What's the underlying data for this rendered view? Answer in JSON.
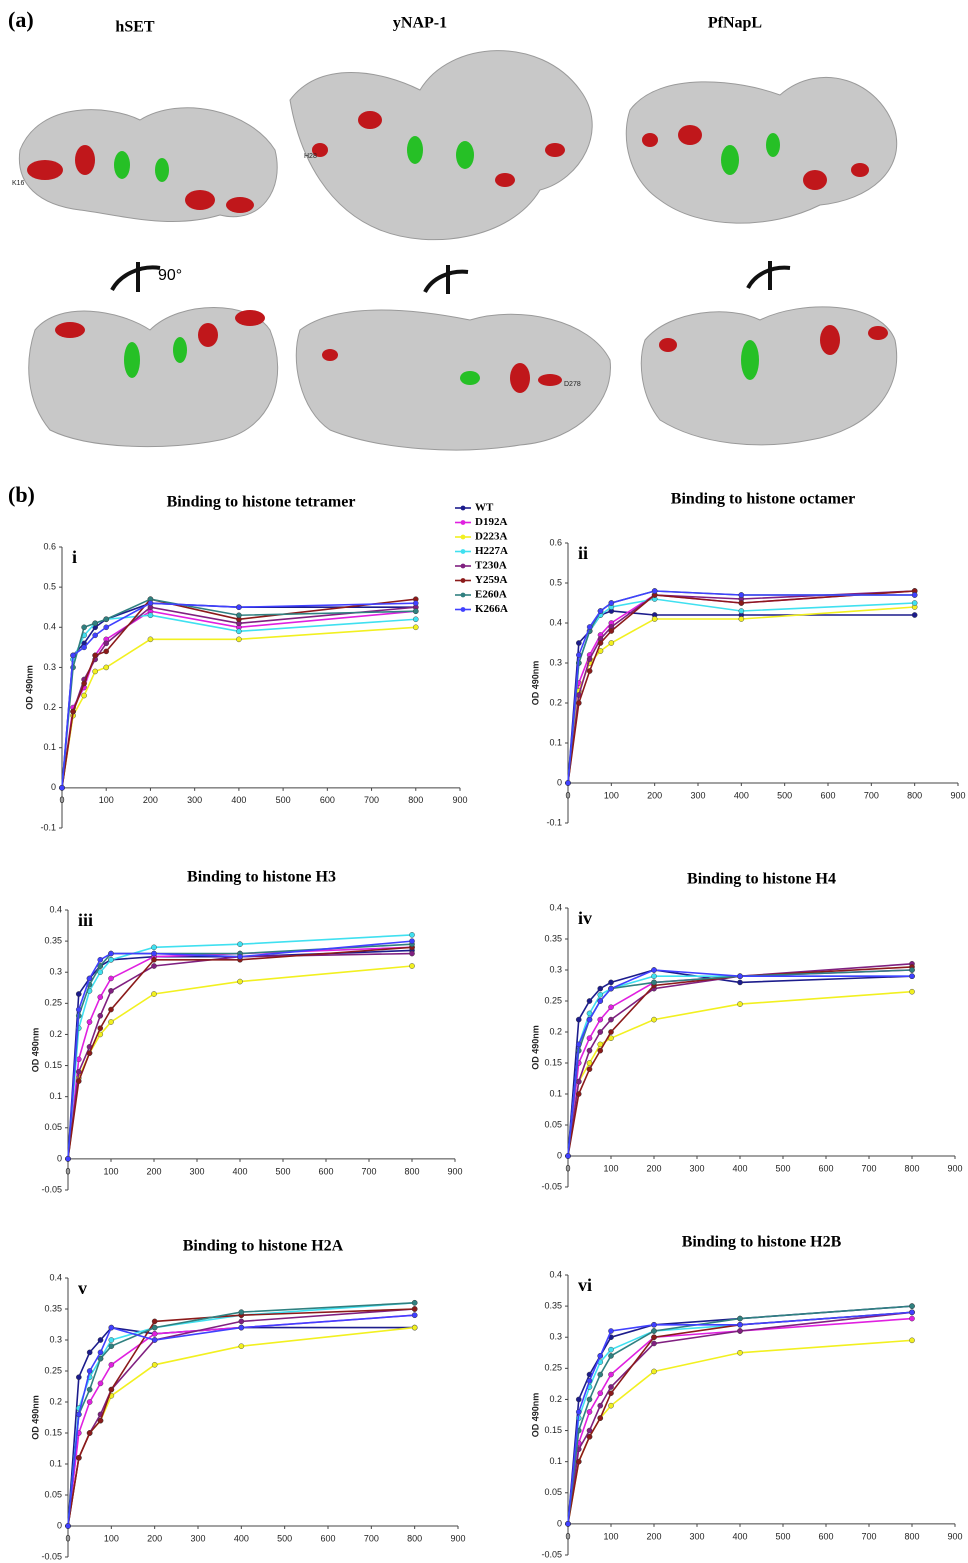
{
  "panel_a": {
    "label": "(a)",
    "proteins": [
      "hSET",
      "yNAP-1",
      "PfNapL"
    ],
    "rotation": "90°",
    "residue_labels": [
      "K16",
      "H28",
      "D278"
    ]
  },
  "panel_b_label": "(b)",
  "chart_data": [
    {
      "type": "line",
      "title": "Binding to histone tetramer",
      "panel": "i",
      "y_label": "OD 490nm",
      "legend": true,
      "x": [
        0,
        25,
        50,
        75,
        100,
        200,
        400,
        800
      ],
      "xlim": [
        0,
        900
      ],
      "xticks": [
        0,
        100,
        200,
        300,
        400,
        500,
        600,
        700,
        800,
        900
      ],
      "ylim": [
        -0.1,
        0.6
      ],
      "yticks": [
        -0.1,
        0,
        0.1,
        0.2,
        0.3,
        0.4,
        0.5,
        0.6
      ],
      "series": [
        {
          "name": "WT",
          "color": "#1c1c8c",
          "values": [
            0,
            0.33,
            0.36,
            0.4,
            0.42,
            0.46,
            0.45,
            0.45
          ]
        },
        {
          "name": "D192A",
          "color": "#e020e0",
          "values": [
            0,
            0.2,
            0.25,
            0.33,
            0.37,
            0.44,
            0.4,
            0.44
          ]
        },
        {
          "name": "D223A",
          "color": "#f2f020",
          "values": [
            0,
            0.18,
            0.23,
            0.29,
            0.3,
            0.37,
            0.37,
            0.4
          ]
        },
        {
          "name": "H227A",
          "color": "#40e0f0",
          "values": [
            0,
            0.32,
            0.38,
            0.41,
            0.42,
            0.43,
            0.39,
            0.42
          ]
        },
        {
          "name": "T230A",
          "color": "#802080",
          "values": [
            0,
            0.19,
            0.27,
            0.32,
            0.36,
            0.45,
            0.41,
            0.45
          ]
        },
        {
          "name": "Y259A",
          "color": "#8b1a1a",
          "values": [
            0,
            0.19,
            0.26,
            0.33,
            0.34,
            0.47,
            0.42,
            0.47
          ]
        },
        {
          "name": "E260A",
          "color": "#308080",
          "values": [
            0,
            0.3,
            0.4,
            0.41,
            0.42,
            0.47,
            0.43,
            0.44
          ]
        },
        {
          "name": "K266A",
          "color": "#4040ff",
          "values": [
            0,
            0.33,
            0.35,
            0.38,
            0.4,
            0.46,
            0.45,
            0.46
          ]
        }
      ]
    },
    {
      "type": "line",
      "title": "Binding to histone octamer",
      "panel": "ii",
      "y_label": "OD 490nm",
      "legend": false,
      "x": [
        0,
        25,
        50,
        75,
        100,
        200,
        400,
        800
      ],
      "xlim": [
        0,
        900
      ],
      "xticks": [
        0,
        100,
        200,
        300,
        400,
        500,
        600,
        700,
        800,
        900
      ],
      "ylim": [
        -0.1,
        0.6
      ],
      "yticks": [
        -0.1,
        0,
        0.1,
        0.2,
        0.3,
        0.4,
        0.5,
        0.6
      ],
      "series": [
        {
          "name": "WT",
          "color": "#1c1c8c",
          "values": [
            0,
            0.35,
            0.38,
            0.42,
            0.43,
            0.42,
            0.42,
            0.42
          ]
        },
        {
          "name": "D192A",
          "color": "#e020e0",
          "values": [
            0,
            0.25,
            0.32,
            0.37,
            0.4,
            0.47,
            0.45,
            0.48
          ]
        },
        {
          "name": "D223A",
          "color": "#f2f020",
          "values": [
            0,
            0.23,
            0.3,
            0.33,
            0.35,
            0.41,
            0.41,
            0.44
          ]
        },
        {
          "name": "H227A",
          "color": "#40e0f0",
          "values": [
            0,
            0.3,
            0.38,
            0.42,
            0.44,
            0.46,
            0.43,
            0.45
          ]
        },
        {
          "name": "T230A",
          "color": "#802080",
          "values": [
            0,
            0.22,
            0.31,
            0.36,
            0.39,
            0.47,
            0.46,
            0.48
          ]
        },
        {
          "name": "Y259A",
          "color": "#8b1a1a",
          "values": [
            0,
            0.2,
            0.28,
            0.35,
            0.38,
            0.47,
            0.45,
            0.48
          ]
        },
        {
          "name": "E260A",
          "color": "#308080",
          "values": [
            0,
            0.3,
            0.38,
            0.43,
            0.45,
            0.48,
            0.47,
            0.47
          ]
        },
        {
          "name": "K266A",
          "color": "#4040ff",
          "values": [
            0,
            0.32,
            0.39,
            0.43,
            0.45,
            0.48,
            0.47,
            0.47
          ]
        }
      ]
    },
    {
      "type": "line",
      "title": "Binding to histone H3",
      "panel": "iii",
      "y_label": "OD 490nm",
      "legend": false,
      "x": [
        0,
        25,
        50,
        75,
        100,
        200,
        400,
        800
      ],
      "xlim": [
        0,
        900
      ],
      "xticks": [
        0,
        100,
        200,
        300,
        400,
        500,
        600,
        700,
        800,
        900
      ],
      "ylim": [
        -0.05,
        0.4
      ],
      "yticks": [
        -0.05,
        0,
        0.05,
        0.1,
        0.15,
        0.2,
        0.25,
        0.3,
        0.35,
        0.4
      ],
      "series": [
        {
          "name": "WT",
          "color": "#1c1c8c",
          "values": [
            0,
            0.265,
            0.29,
            0.31,
            0.32,
            0.325,
            0.325,
            0.335
          ]
        },
        {
          "name": "D192A",
          "color": "#e020e0",
          "values": [
            0,
            0.16,
            0.22,
            0.26,
            0.29,
            0.325,
            0.33,
            0.34
          ]
        },
        {
          "name": "D223A",
          "color": "#f2f020",
          "values": [
            0,
            0.13,
            0.17,
            0.2,
            0.22,
            0.265,
            0.285,
            0.31
          ]
        },
        {
          "name": "H227A",
          "color": "#40e0f0",
          "values": [
            0,
            0.21,
            0.27,
            0.3,
            0.32,
            0.34,
            0.345,
            0.36
          ]
        },
        {
          "name": "T230A",
          "color": "#802080",
          "values": [
            0,
            0.14,
            0.18,
            0.23,
            0.27,
            0.31,
            0.325,
            0.33
          ]
        },
        {
          "name": "Y259A",
          "color": "#8b1a1a",
          "values": [
            0,
            0.125,
            0.17,
            0.21,
            0.24,
            0.32,
            0.32,
            0.34
          ]
        },
        {
          "name": "E260A",
          "color": "#308080",
          "values": [
            0,
            0.23,
            0.28,
            0.31,
            0.33,
            0.33,
            0.33,
            0.345
          ]
        },
        {
          "name": "K266A",
          "color": "#4040ff",
          "values": [
            0,
            0.24,
            0.29,
            0.32,
            0.33,
            0.33,
            0.325,
            0.35
          ]
        }
      ]
    },
    {
      "type": "line",
      "title": "Binding to histone H4",
      "panel": "iv",
      "y_label": "OD 490nm",
      "legend": false,
      "x": [
        0,
        25,
        50,
        75,
        100,
        200,
        400,
        800
      ],
      "xlim": [
        0,
        900
      ],
      "xticks": [
        0,
        100,
        200,
        300,
        400,
        500,
        600,
        700,
        800,
        900
      ],
      "ylim": [
        -0.05,
        0.4
      ],
      "yticks": [
        -0.05,
        0,
        0.05,
        0.1,
        0.15,
        0.2,
        0.25,
        0.3,
        0.35,
        0.4
      ],
      "series": [
        {
          "name": "WT",
          "color": "#1c1c8c",
          "values": [
            0,
            0.22,
            0.25,
            0.27,
            0.28,
            0.3,
            0.28,
            0.29
          ]
        },
        {
          "name": "D192A",
          "color": "#e020e0",
          "values": [
            0,
            0.15,
            0.19,
            0.22,
            0.24,
            0.28,
            0.29,
            0.3
          ]
        },
        {
          "name": "D223A",
          "color": "#f2f020",
          "values": [
            0,
            0.12,
            0.15,
            0.18,
            0.19,
            0.22,
            0.245,
            0.265
          ]
        },
        {
          "name": "H227A",
          "color": "#40e0f0",
          "values": [
            0,
            0.18,
            0.23,
            0.26,
            0.27,
            0.29,
            0.29,
            0.29
          ]
        },
        {
          "name": "T230A",
          "color": "#802080",
          "values": [
            0,
            0.12,
            0.17,
            0.2,
            0.22,
            0.27,
            0.29,
            0.31
          ]
        },
        {
          "name": "Y259A",
          "color": "#8b1a1a",
          "values": [
            0,
            0.1,
            0.14,
            0.17,
            0.2,
            0.275,
            0.29,
            0.305
          ]
        },
        {
          "name": "E260A",
          "color": "#308080",
          "values": [
            0,
            0.17,
            0.22,
            0.25,
            0.27,
            0.28,
            0.29,
            0.3
          ]
        },
        {
          "name": "K266A",
          "color": "#4040ff",
          "values": [
            0,
            0.18,
            0.22,
            0.25,
            0.27,
            0.3,
            0.29,
            0.29
          ]
        }
      ]
    },
    {
      "type": "line",
      "title": "Binding to histone H2A",
      "panel": "v",
      "y_label": "OD 490nm",
      "legend": false,
      "x": [
        0,
        25,
        50,
        75,
        100,
        200,
        400,
        800
      ],
      "xlim": [
        0,
        900
      ],
      "xticks": [
        0,
        100,
        200,
        300,
        400,
        500,
        600,
        700,
        800,
        900
      ],
      "ylim": [
        -0.05,
        0.4
      ],
      "yticks": [
        -0.05,
        0,
        0.05,
        0.1,
        0.15,
        0.2,
        0.25,
        0.3,
        0.35,
        0.4
      ],
      "series": [
        {
          "name": "WT",
          "color": "#1c1c8c",
          "values": [
            0,
            0.24,
            0.28,
            0.3,
            0.32,
            0.31,
            0.32,
            0.32
          ]
        },
        {
          "name": "D192A",
          "color": "#e020e0",
          "values": [
            0,
            0.15,
            0.2,
            0.23,
            0.26,
            0.31,
            0.32,
            0.34
          ]
        },
        {
          "name": "D223A",
          "color": "#f2f020",
          "values": [
            0,
            0.11,
            0.15,
            0.17,
            0.21,
            0.26,
            0.29,
            0.32
          ]
        },
        {
          "name": "H227A",
          "color": "#40e0f0",
          "values": [
            0,
            0.19,
            0.24,
            0.27,
            0.3,
            0.32,
            0.34,
            0.36
          ]
        },
        {
          "name": "T230A",
          "color": "#802080",
          "values": [
            0,
            0.11,
            0.15,
            0.18,
            0.22,
            0.3,
            0.33,
            0.35
          ]
        },
        {
          "name": "Y259A",
          "color": "#8b1a1a",
          "values": [
            0,
            0.11,
            0.15,
            0.17,
            0.22,
            0.33,
            0.34,
            0.35
          ]
        },
        {
          "name": "E260A",
          "color": "#308080",
          "values": [
            0,
            0.18,
            0.22,
            0.27,
            0.29,
            0.32,
            0.345,
            0.36
          ]
        },
        {
          "name": "K266A",
          "color": "#4040ff",
          "values": [
            0,
            0.18,
            0.25,
            0.28,
            0.32,
            0.3,
            0.32,
            0.34
          ]
        }
      ]
    },
    {
      "type": "line",
      "title": "Binding to histone H2B",
      "panel": "vi",
      "y_label": "OD 490nm",
      "legend": false,
      "x": [
        0,
        25,
        50,
        75,
        100,
        200,
        400,
        800
      ],
      "xlim": [
        0,
        900
      ],
      "xticks": [
        0,
        100,
        200,
        300,
        400,
        500,
        600,
        700,
        800,
        900
      ],
      "ylim": [
        -0.05,
        0.4
      ],
      "yticks": [
        -0.05,
        0,
        0.05,
        0.1,
        0.15,
        0.2,
        0.25,
        0.3,
        0.35,
        0.4
      ],
      "series": [
        {
          "name": "WT",
          "color": "#1c1c8c",
          "values": [
            0,
            0.2,
            0.24,
            0.27,
            0.3,
            0.32,
            0.33,
            0.35
          ]
        },
        {
          "name": "D192A",
          "color": "#e020e0",
          "values": [
            0,
            0.13,
            0.18,
            0.21,
            0.24,
            0.3,
            0.31,
            0.33
          ]
        },
        {
          "name": "D223A",
          "color": "#f2f020",
          "values": [
            0,
            0.1,
            0.14,
            0.17,
            0.19,
            0.245,
            0.275,
            0.295
          ]
        },
        {
          "name": "H227A",
          "color": "#40e0f0",
          "values": [
            0,
            0.17,
            0.22,
            0.26,
            0.28,
            0.31,
            0.32,
            0.34
          ]
        },
        {
          "name": "T230A",
          "color": "#802080",
          "values": [
            0,
            0.12,
            0.15,
            0.19,
            0.22,
            0.29,
            0.31,
            0.34
          ]
        },
        {
          "name": "Y259A",
          "color": "#8b1a1a",
          "values": [
            0,
            0.1,
            0.14,
            0.17,
            0.21,
            0.3,
            0.32,
            0.34
          ]
        },
        {
          "name": "E260A",
          "color": "#308080",
          "values": [
            0,
            0.15,
            0.2,
            0.24,
            0.27,
            0.31,
            0.33,
            0.35
          ]
        },
        {
          "name": "K266A",
          "color": "#4040ff",
          "values": [
            0,
            0.18,
            0.23,
            0.27,
            0.31,
            0.32,
            0.32,
            0.34
          ]
        }
      ]
    }
  ]
}
